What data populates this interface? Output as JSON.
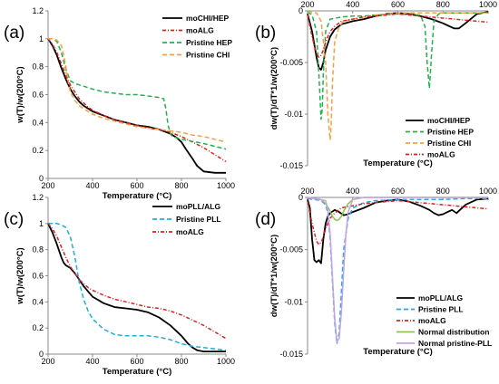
{
  "chart_data": [
    {
      "type": "line",
      "panel_label": "(a)",
      "xlabel": "Temperature (°C)",
      "ylabel": "w(T)/w(200°C)",
      "xlim": [
        200,
        1000
      ],
      "ylim": [
        0,
        1.2
      ],
      "xticks": [
        "200",
        "400",
        "600",
        "800",
        "1000"
      ],
      "yticks": [
        "0",
        "0.2",
        "0.4",
        "0.6",
        "0.8",
        "1",
        "1.2"
      ],
      "grid": false,
      "legend_position": "top-right",
      "series": [
        {
          "name": "moCHI/HEP",
          "color": "#000000",
          "dash": "solid",
          "x": [
            200,
            220,
            240,
            260,
            280,
            300,
            320,
            340,
            360,
            380,
            400,
            450,
            500,
            550,
            600,
            650,
            700,
            750,
            780,
            800,
            820,
            850,
            870,
            900,
            950,
            1000
          ],
          "y": [
            1.0,
            0.95,
            0.88,
            0.79,
            0.71,
            0.64,
            0.59,
            0.55,
            0.52,
            0.5,
            0.48,
            0.45,
            0.42,
            0.4,
            0.38,
            0.37,
            0.35,
            0.32,
            0.29,
            0.26,
            0.21,
            0.14,
            0.09,
            0.05,
            0.04,
            0.04
          ]
        },
        {
          "name": "moALG",
          "color": "#e02020",
          "dash": "dashdot",
          "x": [
            200,
            220,
            240,
            260,
            280,
            300,
            320,
            340,
            360,
            380,
            400,
            450,
            500,
            550,
            600,
            650,
            700,
            750,
            800,
            850,
            900,
            950,
            1000
          ],
          "y": [
            1.0,
            0.96,
            0.9,
            0.82,
            0.74,
            0.67,
            0.62,
            0.57,
            0.54,
            0.51,
            0.49,
            0.45,
            0.42,
            0.4,
            0.38,
            0.36,
            0.35,
            0.33,
            0.3,
            0.26,
            0.22,
            0.17,
            0.12
          ]
        },
        {
          "name": "Pristine HEP",
          "color": "#22b14c",
          "dash": "dashed",
          "x": [
            200,
            220,
            240,
            260,
            280,
            300,
            320,
            340,
            360,
            400,
            450,
            500,
            550,
            600,
            650,
            700,
            720,
            730,
            740,
            750,
            760,
            800,
            900,
            1000
          ],
          "y": [
            1.0,
            1.0,
            0.98,
            0.9,
            0.78,
            0.7,
            0.68,
            0.67,
            0.66,
            0.64,
            0.62,
            0.61,
            0.6,
            0.6,
            0.59,
            0.58,
            0.57,
            0.5,
            0.38,
            0.32,
            0.3,
            0.28,
            0.25,
            0.21
          ]
        },
        {
          "name": "Pristine CHI",
          "color": "#f5a040",
          "dash": "dashed",
          "x": [
            200,
            220,
            240,
            260,
            270,
            280,
            290,
            300,
            320,
            340,
            360,
            400,
            450,
            500,
            550,
            600,
            650,
            700,
            750,
            800,
            850,
            900,
            950,
            1000
          ],
          "y": [
            1.0,
            1.0,
            0.99,
            0.95,
            0.88,
            0.8,
            0.7,
            0.62,
            0.56,
            0.52,
            0.5,
            0.46,
            0.43,
            0.41,
            0.39,
            0.37,
            0.36,
            0.35,
            0.34,
            0.33,
            0.31,
            0.3,
            0.28,
            0.26
          ]
        }
      ]
    },
    {
      "type": "line",
      "panel_label": "(b)",
      "xlabel": "Temperature (°C)",
      "ylabel": "dw(T)/dT*1/w(200°C)",
      "xlim": [
        200,
        1000
      ],
      "ylim": [
        -0.015,
        0
      ],
      "xticks": [
        "200",
        "400",
        "600",
        "800",
        "1000"
      ],
      "yticks": [
        "0",
        "-0.005",
        "-0.01",
        "-0.015"
      ],
      "grid": false,
      "legend_position": "bottom-right",
      "series": [
        {
          "name": "moCHI/HEP",
          "color": "#000000",
          "dash": "solid",
          "x": [
            200,
            220,
            240,
            250,
            260,
            270,
            280,
            300,
            320,
            350,
            400,
            450,
            500,
            550,
            600,
            650,
            700,
            750,
            800,
            820,
            850,
            870,
            900,
            950,
            1000
          ],
          "y": [
            -0.0003,
            -0.002,
            -0.0045,
            -0.0055,
            -0.0057,
            -0.005,
            -0.0038,
            -0.0025,
            -0.0018,
            -0.0013,
            -0.001,
            -0.0008,
            -0.0005,
            -0.0003,
            -0.0002,
            -0.0003,
            -0.0005,
            -0.0008,
            -0.0012,
            -0.0014,
            -0.0017,
            -0.0017,
            -0.0012,
            -0.0003,
            -0.0001
          ]
        },
        {
          "name": "Pristine HEP",
          "color": "#22b14c",
          "dash": "dashed",
          "x": [
            200,
            220,
            240,
            250,
            260,
            265,
            270,
            280,
            300,
            350,
            400,
            450,
            500,
            600,
            700,
            720,
            730,
            740,
            750,
            760,
            780,
            800,
            900,
            1000
          ],
          "y": [
            -0.0001,
            -0.0004,
            -0.002,
            -0.006,
            -0.0105,
            -0.0095,
            -0.006,
            -0.002,
            -0.0008,
            -0.0006,
            -0.0005,
            -0.0005,
            -0.0004,
            -0.0003,
            -0.0004,
            -0.0015,
            -0.005,
            -0.0075,
            -0.004,
            -0.001,
            -0.0003,
            -0.0002,
            -0.0002,
            -0.0002
          ]
        },
        {
          "name": "Pristine CHI",
          "color": "#f5a040",
          "dash": "dashed",
          "x": [
            200,
            240,
            260,
            280,
            290,
            300,
            305,
            310,
            320,
            340,
            360,
            400,
            450,
            500,
            550,
            600,
            700,
            800,
            900,
            1000
          ],
          "y": [
            -0.0001,
            -0.0002,
            -0.001,
            -0.005,
            -0.01,
            -0.0125,
            -0.011,
            -0.007,
            -0.003,
            -0.0015,
            -0.001,
            -0.0008,
            -0.0006,
            -0.0004,
            -0.0003,
            -0.0002,
            -0.0002,
            -0.0002,
            -0.0002,
            -0.0002
          ]
        },
        {
          "name": "moALG",
          "color": "#e02020",
          "dash": "dashdot",
          "x": [
            200,
            220,
            240,
            250,
            260,
            270,
            280,
            300,
            320,
            350,
            400,
            450,
            500,
            550,
            600,
            650,
            700,
            750,
            800,
            850,
            900,
            950,
            1000
          ],
          "y": [
            -0.0004,
            -0.0025,
            -0.0042,
            -0.0045,
            -0.0043,
            -0.0038,
            -0.003,
            -0.002,
            -0.0015,
            -0.001,
            -0.0008,
            -0.0006,
            -0.0005,
            -0.0004,
            -0.0003,
            -0.0004,
            -0.0005,
            -0.0006,
            -0.0007,
            -0.0008,
            -0.0009,
            -0.001,
            -0.0011
          ]
        }
      ]
    },
    {
      "type": "line",
      "panel_label": "(c)",
      "xlabel": "Temperature (°C)",
      "ylabel": "w(T)/w(200°C)",
      "xlim": [
        200,
        1000
      ],
      "ylim": [
        0,
        1.2
      ],
      "xticks": [
        "200",
        "400",
        "600",
        "800",
        "1000"
      ],
      "yticks": [
        "0",
        "0.2",
        "0.4",
        "0.6",
        "0.8",
        "1",
        "1.2"
      ],
      "grid": false,
      "legend_position": "top-right",
      "series": [
        {
          "name": "moPLL/ALG",
          "color": "#000000",
          "dash": "solid",
          "x": [
            200,
            220,
            240,
            260,
            270,
            280,
            300,
            320,
            340,
            360,
            380,
            400,
            450,
            500,
            550,
            600,
            650,
            700,
            750,
            800,
            830,
            850,
            870,
            900,
            950,
            1000
          ],
          "y": [
            1.0,
            0.93,
            0.84,
            0.74,
            0.7,
            0.68,
            0.66,
            0.62,
            0.57,
            0.52,
            0.48,
            0.44,
            0.39,
            0.36,
            0.35,
            0.34,
            0.32,
            0.28,
            0.22,
            0.14,
            0.08,
            0.05,
            0.03,
            0.02,
            0.02,
            0.02
          ]
        },
        {
          "name": "Pristine PLL",
          "color": "#1faee0",
          "dash": "dashed",
          "x": [
            200,
            220,
            240,
            260,
            280,
            300,
            320,
            340,
            360,
            380,
            400,
            450,
            500,
            550,
            600,
            650,
            700,
            750,
            800,
            850,
            900,
            950,
            1000
          ],
          "y": [
            1.0,
            1.0,
            1.0,
            0.99,
            0.97,
            0.9,
            0.75,
            0.55,
            0.42,
            0.33,
            0.27,
            0.19,
            0.15,
            0.14,
            0.14,
            0.14,
            0.13,
            0.11,
            0.08,
            0.06,
            0.05,
            0.04,
            0.03
          ]
        },
        {
          "name": "moALG",
          "color": "#e02020",
          "dash": "dashdot",
          "x": [
            200,
            220,
            240,
            260,
            280,
            300,
            320,
            340,
            360,
            380,
            400,
            450,
            500,
            550,
            600,
            650,
            700,
            750,
            800,
            850,
            900,
            950,
            1000
          ],
          "y": [
            1.0,
            0.96,
            0.9,
            0.82,
            0.74,
            0.67,
            0.62,
            0.57,
            0.54,
            0.51,
            0.49,
            0.45,
            0.42,
            0.4,
            0.38,
            0.36,
            0.35,
            0.33,
            0.3,
            0.26,
            0.22,
            0.17,
            0.12
          ]
        }
      ]
    },
    {
      "type": "line",
      "panel_label": "(d)",
      "xlabel": "Temperature (°C)",
      "ylabel": "dw(T)/dT*1/w(200°C)",
      "xlim": [
        200,
        1000
      ],
      "ylim": [
        -0.015,
        0
      ],
      "xticks": [
        "200",
        "400",
        "600",
        "800",
        "1000"
      ],
      "yticks": [
        "0",
        "-0.005",
        "-0.01",
        "-0.015"
      ],
      "grid": false,
      "legend_position": "bottom-right",
      "series": [
        {
          "name": "moPLL/ALG",
          "color": "#000000",
          "dash": "solid",
          "x": [
            200,
            210,
            220,
            230,
            240,
            250,
            260,
            270,
            280,
            290,
            300,
            320,
            340,
            360,
            380,
            400,
            450,
            500,
            550,
            600,
            650,
            700,
            740,
            760,
            780,
            800,
            820,
            840,
            860,
            880,
            900,
            950,
            1000
          ],
          "y": [
            -0.0002,
            -0.001,
            -0.004,
            -0.006,
            -0.0062,
            -0.006,
            -0.0063,
            -0.004,
            -0.0025,
            -0.0018,
            -0.0015,
            -0.0012,
            -0.0014,
            -0.0017,
            -0.0016,
            -0.0014,
            -0.001,
            -0.0005,
            -0.0003,
            -0.0002,
            -0.0004,
            -0.0008,
            -0.0012,
            -0.0015,
            -0.0017,
            -0.0016,
            -0.0014,
            -0.0012,
            -0.0015,
            -0.0011,
            -0.0007,
            -0.0002,
            -0.0001
          ]
        },
        {
          "name": "Pristine PLL",
          "color": "#1faee0",
          "dash": "dashed",
          "x": [
            200,
            260,
            280,
            290,
            300,
            310,
            320,
            330,
            340,
            350,
            360,
            380,
            400,
            450,
            500,
            600,
            700,
            800,
            900,
            1000
          ],
          "y": [
            -0.0001,
            -0.0003,
            -0.0007,
            -0.0015,
            -0.004,
            -0.008,
            -0.012,
            -0.014,
            -0.013,
            -0.009,
            -0.005,
            -0.002,
            -0.001,
            -0.0005,
            -0.0003,
            -0.0002,
            -0.0002,
            -0.0002,
            -0.0001,
            -0.0001
          ]
        },
        {
          "name": "moALG",
          "color": "#e02020",
          "dash": "dashdot",
          "x": [
            200,
            220,
            240,
            250,
            260,
            270,
            280,
            300,
            320,
            350,
            400,
            450,
            500,
            550,
            600,
            650,
            700,
            750,
            800,
            850,
            900,
            950,
            1000
          ],
          "y": [
            -0.0004,
            -0.0025,
            -0.0042,
            -0.0045,
            -0.0043,
            -0.0038,
            -0.003,
            -0.002,
            -0.0015,
            -0.001,
            -0.0008,
            -0.0006,
            -0.0005,
            -0.0004,
            -0.0003,
            -0.0004,
            -0.0005,
            -0.0006,
            -0.0007,
            -0.0008,
            -0.0009,
            -0.001,
            -0.0011
          ]
        },
        {
          "name": "Normal distribution",
          "color": "#8ec64a",
          "dash": "solid",
          "x": [
            200,
            260,
            280,
            300,
            310,
            320,
            330,
            340,
            350,
            360,
            380,
            400,
            450,
            1000
          ],
          "y": [
            0,
            -0.0002,
            -0.0006,
            -0.0013,
            -0.0018,
            -0.0021,
            -0.0022,
            -0.0021,
            -0.0018,
            -0.0013,
            -0.0006,
            -0.0002,
            0,
            0
          ]
        },
        {
          "name": "Normal pristine-PLL",
          "color": "#c9a0e8",
          "dash": "solid",
          "x": [
            200,
            280,
            290,
            300,
            310,
            320,
            330,
            340,
            350,
            360,
            370,
            380,
            400,
            450,
            1000
          ],
          "y": [
            0,
            -0.0003,
            -0.0012,
            -0.0035,
            -0.0075,
            -0.0115,
            -0.0138,
            -0.0135,
            -0.011,
            -0.007,
            -0.0035,
            -0.0014,
            -0.0002,
            0,
            0
          ]
        }
      ]
    }
  ]
}
